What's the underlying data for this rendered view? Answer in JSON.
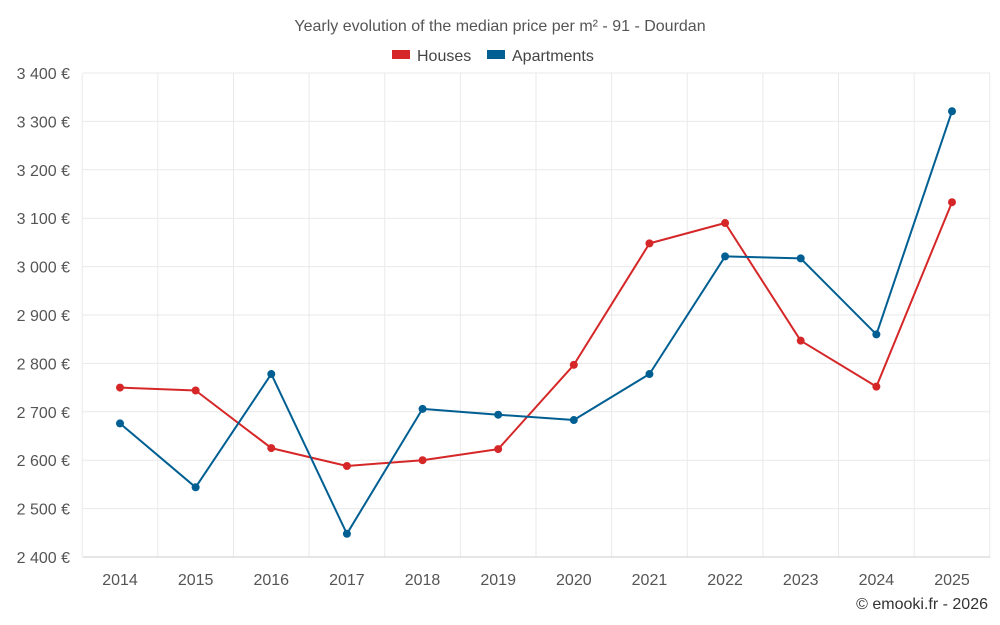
{
  "chart_data": {
    "type": "line",
    "title": "Yearly evolution of the median price per m² - 91 - Dourdan",
    "categories": [
      "2014",
      "2015",
      "2016",
      "2017",
      "2018",
      "2019",
      "2020",
      "2021",
      "2022",
      "2023",
      "2024",
      "2025"
    ],
    "ylim": [
      2400,
      3400
    ],
    "yticks": [
      2400,
      2500,
      2600,
      2700,
      2800,
      2900,
      3000,
      3100,
      3200,
      3300,
      3400
    ],
    "ytick_labels": [
      "2 400 €",
      "2 500 €",
      "2 600 €",
      "2 700 €",
      "2 800 €",
      "2 900 €",
      "3 000 €",
      "3 100 €",
      "3 200 €",
      "3 300 €",
      "3 400 €"
    ],
    "xlabel": "",
    "ylabel": "",
    "grid": true,
    "legend_position": "top-center",
    "series": [
      {
        "name": "Houses",
        "color": "#d62728",
        "values": [
          2750,
          2744,
          2625,
          2588,
          2600,
          2623,
          2797,
          3048,
          3090,
          2847,
          2752,
          3133
        ]
      },
      {
        "name": "Apartments",
        "color": "#005f92",
        "values": [
          2676,
          2544,
          2778,
          2448,
          2706,
          2694,
          2683,
          2778,
          3021,
          3017,
          2860,
          3321
        ]
      }
    ],
    "credit": "© emooki.fr - 2026"
  }
}
